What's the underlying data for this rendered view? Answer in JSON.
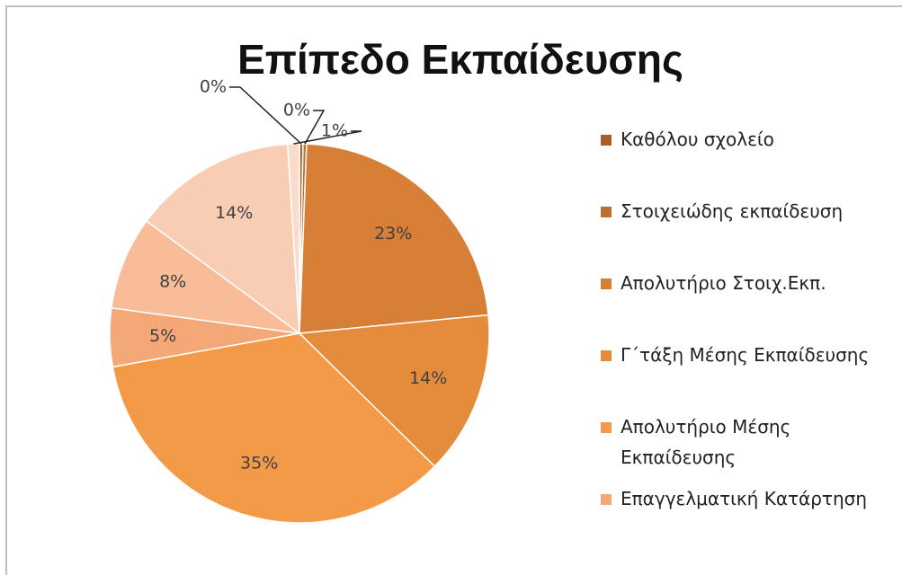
{
  "chart_data": {
    "type": "pie",
    "title": "Επίπεδο Εκπαίδευσης",
    "categories": [
      "Καθόλου σχολείο",
      "Στοιχειώδης εκπαίδευση",
      "Απολυτήριο Στοιχ.Εκπ.",
      "Γ΄τάξη Μέσης Εκπαίδευσης",
      "Απολυτήριο Μέσης Εκπαίδευσης",
      "Επαγγελματική Κατάρτηση",
      null,
      null,
      null
    ],
    "values": [
      0.3,
      0.3,
      23,
      14,
      35,
      5,
      8,
      14,
      1
    ],
    "value_labels": [
      "0%",
      "0%",
      "23%",
      "14%",
      "35%",
      "5%",
      "8%",
      "14%",
      "1%"
    ],
    "colors": [
      "#a95f27",
      "#be6e2f",
      "#d77f37",
      "#e58c3c",
      "#f39a48",
      "#f5a877",
      "#f8bc98",
      "#f9cdb4",
      "#fbdccb"
    ]
  }
}
